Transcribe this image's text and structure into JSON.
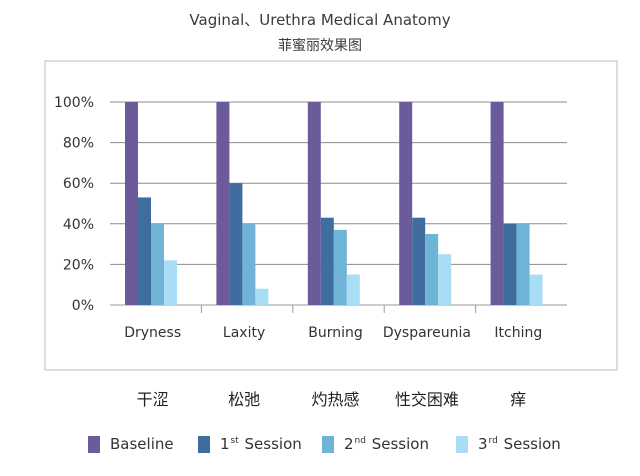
{
  "chart_data": {
    "type": "bar",
    "title": "Vaginal、Urethra Medical Anatomy",
    "subtitle": "菲蜜丽效果图",
    "categories": [
      "Dryness",
      "Laxity",
      "Burning",
      "Dyspareunia",
      "Itching"
    ],
    "categories_cn": [
      "干涩",
      "松弛",
      "灼热感",
      "性交困难",
      "痒"
    ],
    "ylim": [
      0,
      100
    ],
    "yticks": [
      "0%",
      "20%",
      "40%",
      "60%",
      "80%",
      "100%"
    ],
    "ytick_values": [
      0,
      20,
      40,
      60,
      80,
      100
    ],
    "grid": true,
    "legend_position": "bottom",
    "series": [
      {
        "name": "Baseline",
        "label_main": "Baseline",
        "label_sup": "",
        "label_rest": "",
        "color": "#6b5b9a",
        "values": [
          100,
          100,
          100,
          100,
          100
        ]
      },
      {
        "name": "1st Session",
        "label_main": "1",
        "label_sup": "st",
        "label_rest": "Session",
        "color": "#3f6d9e",
        "values": [
          53,
          60,
          43,
          43,
          40
        ]
      },
      {
        "name": "2nd Session",
        "label_main": "2",
        "label_sup": "nd",
        "label_rest": "Session",
        "color": "#6fb3d6",
        "values": [
          40,
          40,
          37,
          35,
          40
        ]
      },
      {
        "name": "3rd Session",
        "label_main": "3",
        "label_sup": "rd",
        "label_rest": "Session",
        "color": "#a9dcf5",
        "values": [
          22,
          8,
          15,
          25,
          15
        ]
      }
    ]
  }
}
